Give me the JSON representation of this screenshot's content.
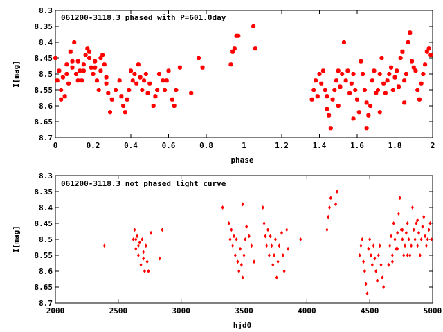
{
  "chart_data": [
    {
      "type": "scatter",
      "title": "061200-3118.3 phased with P=601.0day",
      "xlabel": "phase",
      "ylabel": "I[mag]",
      "xlim": [
        0,
        2
      ],
      "ylim": [
        8.7,
        8.3
      ],
      "y_inverted": true,
      "grid": false,
      "x_ticks": [
        "0",
        "0.2",
        "0.4",
        "0.6",
        "0.8",
        "1",
        "1.2",
        "1.4",
        "1.6",
        "1.8",
        "2"
      ],
      "y_ticks": [
        "8.3",
        "8.35",
        "8.4",
        "8.45",
        "8.5",
        "8.55",
        "8.6",
        "8.65",
        "8.7"
      ],
      "marker_color": "#ff0000",
      "points": [
        [
          0.0,
          8.45
        ],
        [
          0.01,
          8.52
        ],
        [
          0.02,
          8.49
        ],
        [
          0.03,
          8.55
        ],
        [
          0.04,
          8.51
        ],
        [
          0.05,
          8.57
        ],
        [
          0.06,
          8.47
        ],
        [
          0.07,
          8.53
        ],
        [
          0.08,
          8.43
        ],
        [
          0.09,
          8.48
        ],
        [
          0.1,
          8.4
        ],
        [
          0.11,
          8.5
        ],
        [
          0.12,
          8.46
        ],
        [
          0.13,
          8.49
        ],
        [
          0.14,
          8.52
        ],
        [
          0.15,
          8.47
        ],
        [
          0.16,
          8.44
        ],
        [
          0.17,
          8.42
        ],
        [
          0.18,
          8.45
        ],
        [
          0.19,
          8.48
        ],
        [
          0.2,
          8.5
        ],
        [
          0.21,
          8.46
        ],
        [
          0.22,
          8.52
        ],
        [
          0.23,
          8.55
        ],
        [
          0.24,
          8.49
        ],
        [
          0.25,
          8.44
        ],
        [
          0.26,
          8.47
        ],
        [
          0.27,
          8.51
        ],
        [
          0.28,
          8.56
        ],
        [
          0.29,
          8.62
        ],
        [
          0.03,
          8.58
        ],
        [
          0.06,
          8.5
        ],
        [
          0.09,
          8.46
        ],
        [
          0.12,
          8.52
        ],
        [
          0.15,
          8.49
        ],
        [
          0.18,
          8.43
        ],
        [
          0.21,
          8.48
        ],
        [
          0.24,
          8.45
        ],
        [
          0.27,
          8.53
        ],
        [
          0.3,
          8.58
        ],
        [
          0.32,
          8.55
        ],
        [
          0.34,
          8.52
        ],
        [
          0.35,
          8.57
        ],
        [
          0.36,
          8.6
        ],
        [
          0.37,
          8.62
        ],
        [
          0.38,
          8.58
        ],
        [
          0.39,
          8.55
        ],
        [
          0.4,
          8.49
        ],
        [
          0.41,
          8.52
        ],
        [
          0.42,
          8.5
        ],
        [
          0.43,
          8.53
        ],
        [
          0.44,
          8.47
        ],
        [
          0.45,
          8.51
        ],
        [
          0.46,
          8.55
        ],
        [
          0.47,
          8.52
        ],
        [
          0.48,
          8.5
        ],
        [
          0.49,
          8.56
        ],
        [
          0.5,
          8.53
        ],
        [
          0.52,
          8.6
        ],
        [
          0.53,
          8.57
        ],
        [
          0.54,
          8.55
        ],
        [
          0.55,
          8.5
        ],
        [
          0.57,
          8.52
        ],
        [
          0.58,
          8.55
        ],
        [
          0.59,
          8.52
        ],
        [
          0.6,
          8.49
        ],
        [
          0.62,
          8.58
        ],
        [
          0.63,
          8.6
        ],
        [
          0.64,
          8.55
        ],
        [
          0.66,
          8.48
        ],
        [
          0.72,
          8.56
        ],
        [
          0.76,
          8.45
        ],
        [
          0.78,
          8.48
        ],
        [
          0.93,
          8.47
        ],
        [
          0.94,
          8.43
        ],
        [
          0.95,
          8.42
        ],
        [
          0.96,
          8.38
        ],
        [
          0.97,
          8.38
        ],
        [
          1.05,
          8.35
        ],
        [
          1.06,
          8.42
        ],
        [
          1.36,
          8.58
        ],
        [
          1.37,
          8.55
        ],
        [
          1.38,
          8.52
        ],
        [
          1.39,
          8.57
        ],
        [
          1.4,
          8.5
        ],
        [
          1.41,
          8.53
        ],
        [
          1.42,
          8.49
        ],
        [
          1.43,
          8.55
        ],
        [
          1.44,
          8.61
        ],
        [
          1.45,
          8.63
        ],
        [
          1.46,
          8.67
        ],
        [
          1.47,
          8.58
        ],
        [
          1.48,
          8.55
        ],
        [
          1.49,
          8.52
        ],
        [
          1.5,
          8.49
        ],
        [
          1.51,
          8.54
        ],
        [
          1.52,
          8.5
        ],
        [
          1.53,
          8.4
        ],
        [
          1.54,
          8.52
        ],
        [
          1.55,
          8.49
        ],
        [
          1.56,
          8.56
        ],
        [
          1.57,
          8.53
        ],
        [
          1.58,
          8.5
        ],
        [
          1.59,
          8.55
        ],
        [
          1.6,
          8.58
        ],
        [
          1.61,
          8.62
        ],
        [
          1.62,
          8.46
        ],
        [
          1.63,
          8.5
        ],
        [
          1.64,
          8.55
        ],
        [
          1.65,
          8.59
        ],
        [
          1.66,
          8.63
        ],
        [
          1.67,
          8.6
        ],
        [
          1.68,
          8.52
        ],
        [
          1.69,
          8.49
        ],
        [
          1.7,
          8.56
        ],
        [
          1.71,
          8.55
        ],
        [
          1.72,
          8.5
        ],
        [
          1.73,
          8.45
        ],
        [
          1.74,
          8.53
        ],
        [
          1.75,
          8.56
        ],
        [
          1.76,
          8.52
        ],
        [
          1.77,
          8.5
        ],
        [
          1.78,
          8.48
        ],
        [
          1.79,
          8.55
        ],
        [
          1.8,
          8.51
        ],
        [
          1.81,
          8.49
        ],
        [
          1.82,
          8.54
        ],
        [
          1.83,
          8.45
        ],
        [
          1.84,
          8.43
        ],
        [
          1.85,
          8.52
        ],
        [
          1.86,
          8.5
        ],
        [
          1.87,
          8.4
        ],
        [
          1.88,
          8.37
        ],
        [
          1.89,
          8.46
        ],
        [
          1.9,
          8.48
        ],
        [
          1.91,
          8.49
        ],
        [
          1.92,
          8.55
        ],
        [
          1.93,
          8.58
        ],
        [
          1.94,
          8.53
        ],
        [
          1.95,
          8.5
        ],
        [
          1.96,
          8.47
        ],
        [
          1.97,
          8.43
        ],
        [
          1.98,
          8.42
        ],
        [
          1.99,
          8.44
        ],
        [
          1.85,
          8.59
        ],
        [
          1.72,
          8.62
        ],
        [
          1.58,
          8.64
        ],
        [
          1.5,
          8.6
        ],
        [
          1.44,
          8.57
        ],
        [
          1.65,
          8.67
        ]
      ]
    },
    {
      "type": "scatter",
      "title": "061200-3118.3 not phased light curve",
      "xlabel": "hjd0",
      "ylabel": "I[mag]",
      "xlim": [
        2000,
        5000
      ],
      "ylim": [
        8.7,
        8.3
      ],
      "y_inverted": true,
      "grid": false,
      "x_ticks": [
        "2000",
        "2500",
        "3000",
        "3500",
        "4000",
        "4500",
        "5000"
      ],
      "y_ticks": [
        "8.3",
        "8.35",
        "8.4",
        "8.45",
        "8.5",
        "8.55",
        "8.6",
        "8.65",
        "8.7"
      ],
      "marker_color": "#ff0000",
      "points": [
        [
          2390,
          8.52
        ],
        [
          2620,
          8.5
        ],
        [
          2630,
          8.47
        ],
        [
          2640,
          8.53
        ],
        [
          2650,
          8.49
        ],
        [
          2660,
          8.55
        ],
        [
          2670,
          8.51
        ],
        [
          2680,
          8.58
        ],
        [
          2690,
          8.5
        ],
        [
          2700,
          8.54
        ],
        [
          2710,
          8.6
        ],
        [
          2720,
          8.52
        ],
        [
          2730,
          8.57
        ],
        [
          2740,
          8.6
        ],
        [
          2760,
          8.48
        ],
        [
          2830,
          8.56
        ],
        [
          2850,
          8.47
        ],
        [
          2640,
          8.5
        ],
        [
          2660,
          8.52
        ],
        [
          2700,
          8.56
        ],
        [
          3330,
          8.4
        ],
        [
          3380,
          8.45
        ],
        [
          3390,
          8.5
        ],
        [
          3400,
          8.47
        ],
        [
          3410,
          8.52
        ],
        [
          3420,
          8.49
        ],
        [
          3430,
          8.55
        ],
        [
          3440,
          8.5
        ],
        [
          3450,
          8.57
        ],
        [
          3460,
          8.6
        ],
        [
          3470,
          8.53
        ],
        [
          3480,
          8.58
        ],
        [
          3490,
          8.62
        ],
        [
          3500,
          8.55
        ],
        [
          3510,
          8.5
        ],
        [
          3520,
          8.46
        ],
        [
          3540,
          8.49
        ],
        [
          3560,
          8.52
        ],
        [
          3580,
          8.57
        ],
        [
          3490,
          8.39
        ],
        [
          3650,
          8.4
        ],
        [
          3660,
          8.45
        ],
        [
          3670,
          8.49
        ],
        [
          3680,
          8.52
        ],
        [
          3690,
          8.47
        ],
        [
          3700,
          8.55
        ],
        [
          3710,
          8.49
        ],
        [
          3720,
          8.52
        ],
        [
          3730,
          8.58
        ],
        [
          3740,
          8.55
        ],
        [
          3750,
          8.5
        ],
        [
          3760,
          8.62
        ],
        [
          3770,
          8.57
        ],
        [
          3780,
          8.52
        ],
        [
          3800,
          8.48
        ],
        [
          3810,
          8.55
        ],
        [
          3820,
          8.6
        ],
        [
          3840,
          8.47
        ],
        [
          3850,
          8.53
        ],
        [
          3950,
          8.5
        ],
        [
          4160,
          8.47
        ],
        [
          4170,
          8.43
        ],
        [
          4180,
          8.4
        ],
        [
          4190,
          8.37
        ],
        [
          4230,
          8.39
        ],
        [
          4240,
          8.35
        ],
        [
          4420,
          8.55
        ],
        [
          4430,
          8.52
        ],
        [
          4440,
          8.5
        ],
        [
          4450,
          8.57
        ],
        [
          4460,
          8.6
        ],
        [
          4470,
          8.64
        ],
        [
          4480,
          8.67
        ],
        [
          4490,
          8.53
        ],
        [
          4500,
          8.5
        ],
        [
          4510,
          8.55
        ],
        [
          4520,
          8.58
        ],
        [
          4530,
          8.52
        ],
        [
          4540,
          8.56
        ],
        [
          4550,
          8.6
        ],
        [
          4560,
          8.63
        ],
        [
          4570,
          8.55
        ],
        [
          4580,
          8.52
        ],
        [
          4590,
          8.58
        ],
        [
          4600,
          8.62
        ],
        [
          4610,
          8.65
        ],
        [
          4650,
          8.58
        ],
        [
          4660,
          8.52
        ],
        [
          4670,
          8.49
        ],
        [
          4680,
          8.55
        ],
        [
          4690,
          8.45
        ],
        [
          4700,
          8.5
        ],
        [
          4710,
          8.53
        ],
        [
          4720,
          8.48
        ],
        [
          4730,
          8.42
        ],
        [
          4740,
          8.37
        ],
        [
          4750,
          8.47
        ],
        [
          4760,
          8.5
        ],
        [
          4770,
          8.55
        ],
        [
          4780,
          8.52
        ],
        [
          4790,
          8.48
        ],
        [
          4800,
          8.45
        ],
        [
          4810,
          8.5
        ],
        [
          4820,
          8.55
        ],
        [
          4830,
          8.52
        ],
        [
          4840,
          8.4
        ],
        [
          4850,
          8.47
        ],
        [
          4860,
          8.5
        ],
        [
          4870,
          8.45
        ],
        [
          4880,
          8.52
        ],
        [
          4890,
          8.48
        ],
        [
          4900,
          8.55
        ],
        [
          4910,
          8.5
        ],
        [
          4920,
          8.46
        ],
        [
          4930,
          8.43
        ],
        [
          4940,
          8.49
        ],
        [
          4950,
          8.52
        ],
        [
          4960,
          8.5
        ],
        [
          4970,
          8.47
        ],
        [
          4980,
          8.45
        ],
        [
          4990,
          8.5
        ],
        [
          4680,
          8.57
        ],
        [
          4720,
          8.53
        ],
        [
          4760,
          8.47
        ],
        [
          4800,
          8.55
        ],
        [
          4880,
          8.44
        ]
      ]
    }
  ]
}
